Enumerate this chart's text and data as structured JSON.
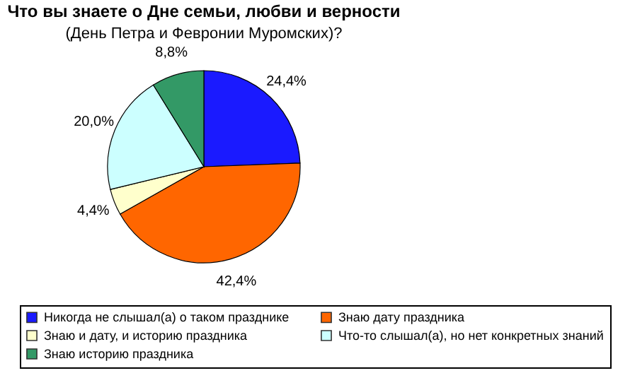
{
  "chart_data": {
    "type": "pie",
    "title": "Что вы знаете о Дне семьи, любви и верности",
    "subtitle": "(День Петра и Февронии Муромских)?",
    "categories": [
      "Никогда не слышал(а) о таком празднике",
      "Знаю дату праздника",
      "Знаю и дату, и историю праздника",
      "Что-то слышал(а), но нет конкретных знаний",
      "Знаю историю праздника"
    ],
    "values": [
      24.4,
      42.4,
      4.4,
      20.0,
      8.8
    ],
    "value_labels": [
      "24,4%",
      "42,4%",
      "4,4%",
      "20,0%",
      "8,8%"
    ],
    "colors": [
      "#1a1aff",
      "#ff6600",
      "#ffffcc",
      "#ccffff",
      "#339966"
    ],
    "legend": "bottom"
  }
}
